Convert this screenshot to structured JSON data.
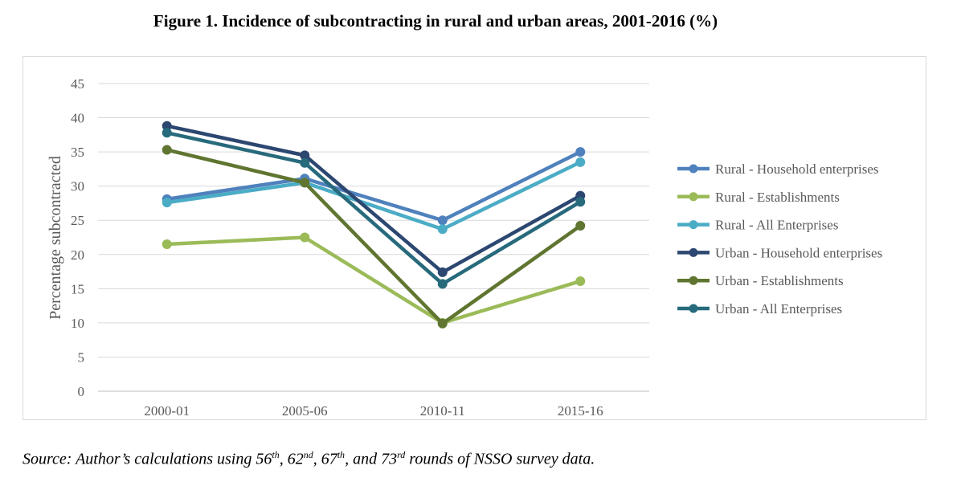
{
  "figure_title": "Figure 1.  Incidence of subcontracting in rural and urban areas, 2001-2016 (%)",
  "source_note": {
    "prefix": "Source: Author’s calculations using 56",
    "sup1": "th",
    "sep1": ", 62",
    "sup2": "nd",
    "sep2": ", 67",
    "sup3": "th",
    "sep3": ", and 73",
    "sup4": "rd",
    "suffix": " rounds of NSSO survey data."
  },
  "chart_data": {
    "type": "line",
    "title": "",
    "xlabel": "",
    "ylabel": "Percentage subcontracted",
    "ylim": [
      0,
      45
    ],
    "yticks": [
      0,
      5,
      10,
      15,
      20,
      25,
      30,
      35,
      40,
      45
    ],
    "grid": true,
    "legend_position": "right",
    "categories": [
      "2000-01",
      "2005-06",
      "2010-11",
      "2015-16"
    ],
    "series": [
      {
        "name": "Rural - Household enterprises",
        "color": "#4f81bd",
        "values": [
          28.1,
          31.1,
          25.0,
          35.0
        ]
      },
      {
        "name": "Rural - Establishments",
        "color": "#9bbb59",
        "values": [
          21.5,
          22.5,
          10.0,
          16.1
        ]
      },
      {
        "name": "Rural - All Enterprises",
        "color": "#4bacc6",
        "values": [
          27.6,
          30.5,
          23.7,
          33.5
        ]
      },
      {
        "name": "Urban - Household enterprises",
        "color": "#2c4770",
        "values": [
          38.8,
          34.5,
          17.4,
          28.6
        ]
      },
      {
        "name": "Urban - Establishments",
        "color": "#5f7530",
        "values": [
          35.3,
          30.5,
          9.9,
          24.2
        ]
      },
      {
        "name": "Urban - All Enterprises",
        "color": "#276a7c",
        "values": [
          37.8,
          33.4,
          15.7,
          27.7
        ]
      }
    ]
  }
}
